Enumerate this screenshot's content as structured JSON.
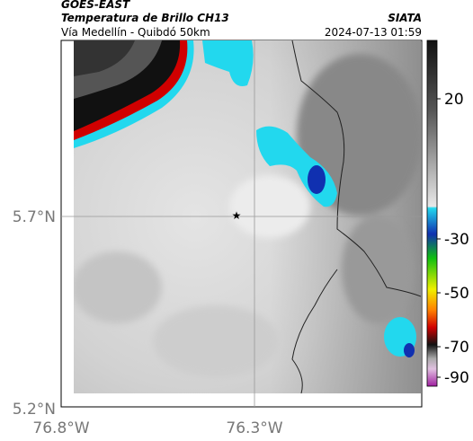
{
  "header": {
    "satellite": "GOES-EAST",
    "product": "Temperatura de Brillo CH13",
    "source": "SIATA",
    "location": "Vía Medellín - Quibdó 50km",
    "timestamp": "2024-07-13 01:59"
  },
  "map": {
    "lat_labels": [
      "5.7°N",
      "5.2°N"
    ],
    "lon_labels": [
      "76.8°W",
      "76.3°W"
    ]
  },
  "colorbar": {
    "ticks": [
      20,
      -30,
      -50,
      -70,
      -90
    ]
  }
}
